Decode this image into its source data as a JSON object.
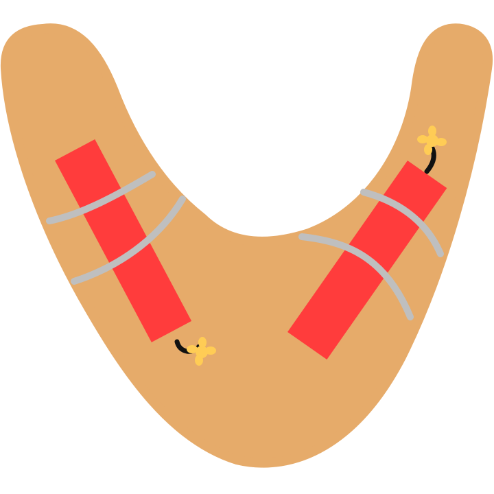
{
  "scene": {
    "subject": "boomerang-with-dynamite",
    "dynamite_count": 2,
    "fuse_lit": true,
    "colors": {
      "background": "#ffffff",
      "boomerang": "#E6AB6A",
      "dynamite": "#FF3C3C",
      "tape": "#BFBFBF",
      "fuse": "#111111",
      "spark": "#FFCC55"
    }
  }
}
